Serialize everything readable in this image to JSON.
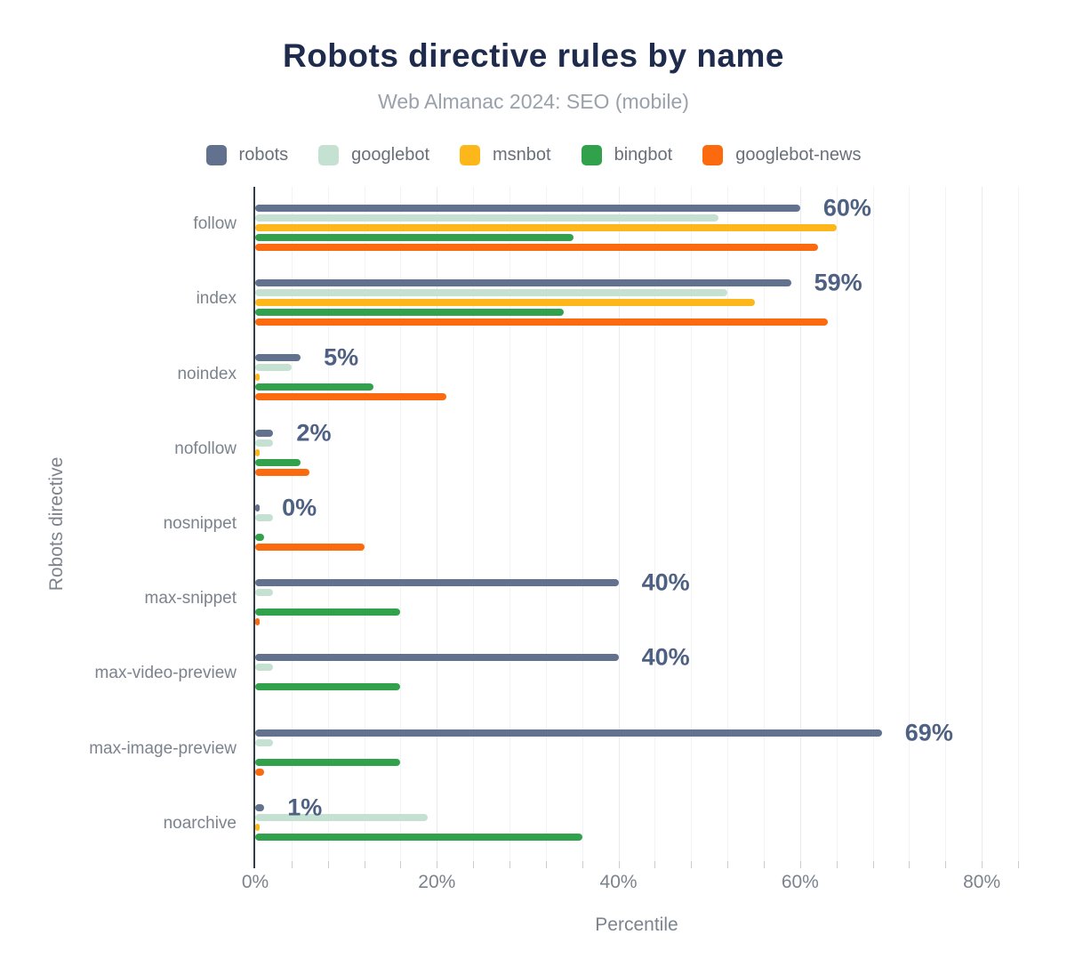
{
  "header": {
    "title": "Robots directive rules by name",
    "subtitle": "Web Almanac 2024: SEO (mobile)"
  },
  "colors": {
    "title": "#1e2b4d",
    "subtitle": "#99a1ab",
    "axis_text": "#7b838d",
    "data_label": "#4e6183",
    "axis_line": "#343c48",
    "gridline": "#f2f3f5"
  },
  "chart_data": {
    "type": "bar",
    "orientation": "horizontal",
    "title": "Robots directive rules by name",
    "subtitle": "Web Almanac 2024: SEO (mobile)",
    "xlabel": "Percentile",
    "ylabel": "Robots directive",
    "xlim": [
      0,
      84
    ],
    "grid": "vertical gridlines every 4%, ticks below axis",
    "legend_position": "top",
    "x_ticks": [
      {
        "value": 0,
        "label": "0%"
      },
      {
        "value": 20,
        "label": "20%"
      },
      {
        "value": 40,
        "label": "40%"
      },
      {
        "value": 60,
        "label": "60%"
      },
      {
        "value": 80,
        "label": "80%"
      }
    ],
    "categories": [
      "follow",
      "index",
      "noindex",
      "nofollow",
      "nosnippet",
      "max-snippet",
      "max-video-preview",
      "max-image-preview",
      "noarchive"
    ],
    "series": [
      {
        "name": "robots",
        "color": "#61718e",
        "values": [
          60,
          59,
          5,
          2,
          0.4,
          40,
          40,
          69,
          1
        ]
      },
      {
        "name": "googlebot",
        "color": "#c5e1d2",
        "values": [
          51,
          52,
          4,
          2,
          2,
          2,
          2,
          2,
          19
        ]
      },
      {
        "name": "msnbot",
        "color": "#fdb71a",
        "values": [
          64,
          55,
          0.5,
          0.5,
          0,
          0,
          0,
          0,
          0.5
        ]
      },
      {
        "name": "bingbot",
        "color": "#32a14c",
        "values": [
          35,
          34,
          13,
          5,
          1,
          16,
          16,
          16,
          36
        ]
      },
      {
        "name": "googlebot-news",
        "color": "#fb6a0e",
        "values": [
          62,
          63,
          21,
          6,
          12,
          0.4,
          0,
          1,
          0
        ]
      }
    ],
    "data_labels": [
      "60%",
      "59%",
      "5%",
      "2%",
      "0%",
      "40%",
      "40%",
      "69%",
      "1%"
    ]
  }
}
